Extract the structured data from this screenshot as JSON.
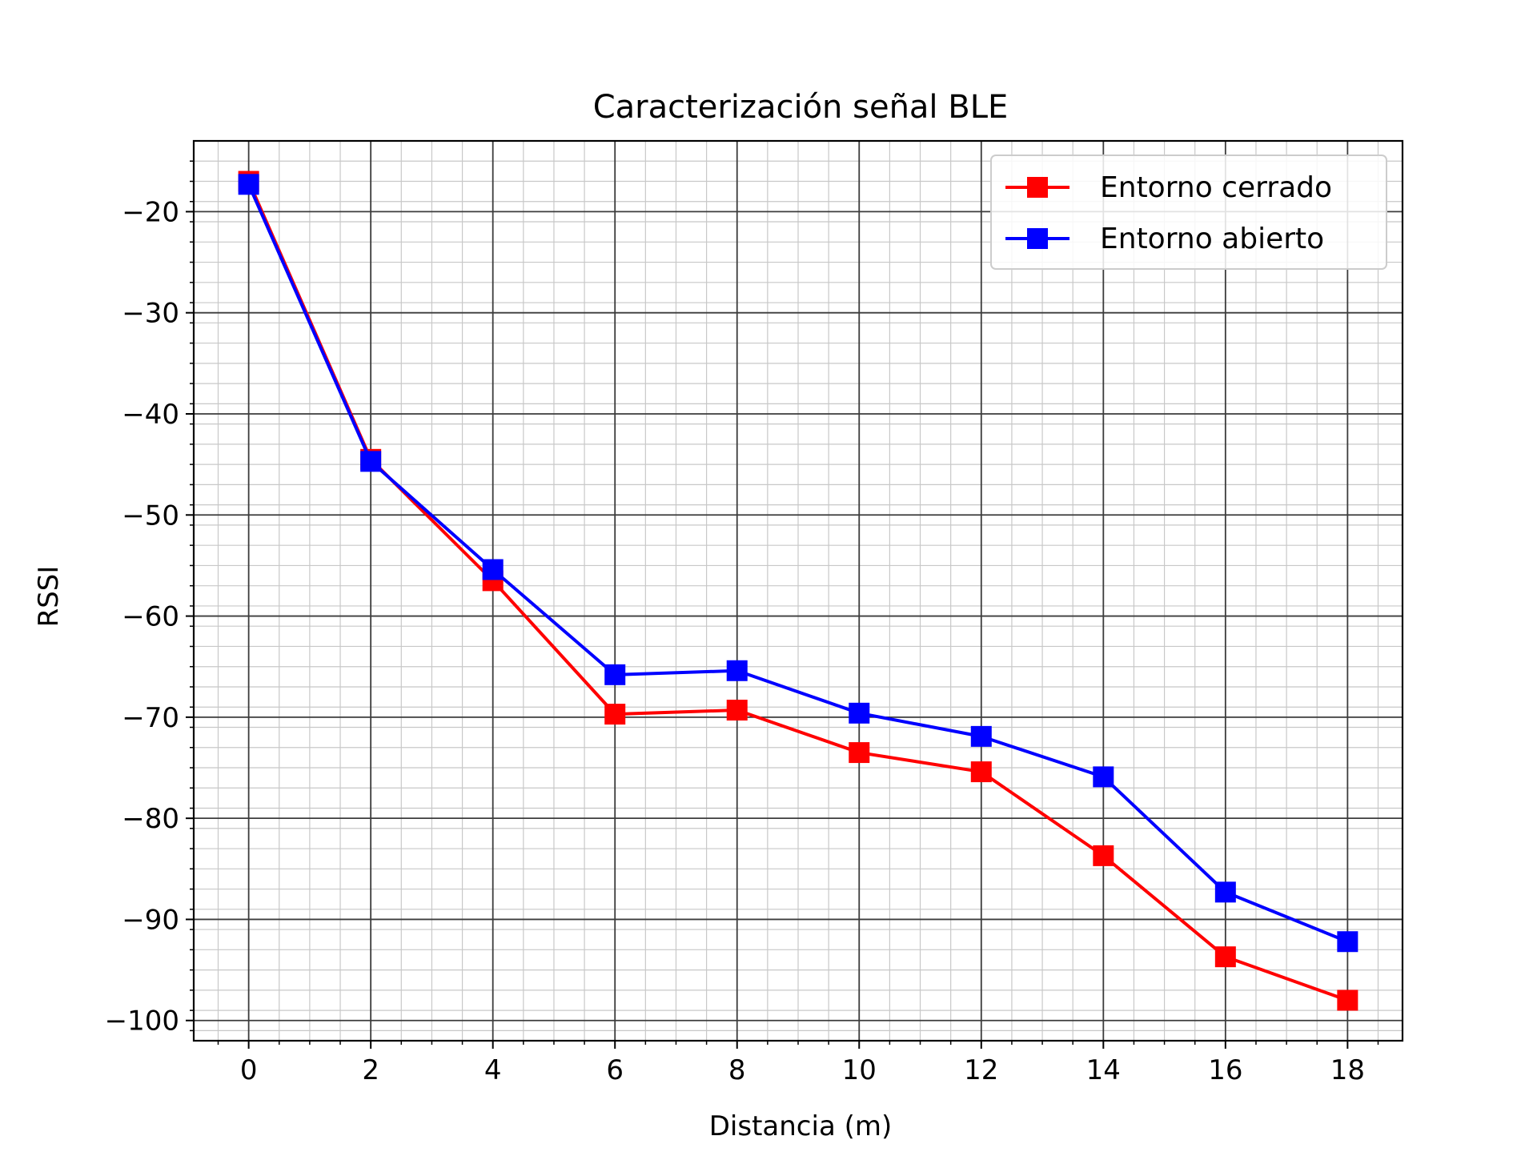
{
  "chart_data": {
    "type": "line",
    "title": "Caracterización señal BLE",
    "xlabel": "Distancia (m)",
    "ylabel": "RSSI",
    "xlim": [
      -0.9,
      18.9
    ],
    "ylim": [
      -102,
      -13
    ],
    "x_ticks": [
      0,
      2,
      4,
      6,
      8,
      10,
      12,
      14,
      16,
      18
    ],
    "y_ticks": [
      -20,
      -30,
      -40,
      -50,
      -60,
      -70,
      -80,
      -90,
      -100
    ],
    "x_tick_labels": [
      "0",
      "2",
      "4",
      "6",
      "8",
      "10",
      "12",
      "14",
      "16",
      "18"
    ],
    "y_tick_labels": [
      "−20",
      "−30",
      "−40",
      "−50",
      "−60",
      "−70",
      "−80",
      "−90",
      "−100"
    ],
    "grid": "on",
    "legend_position": "top-right",
    "x": [
      0,
      2,
      4,
      6,
      8,
      10,
      12,
      14,
      16,
      18
    ],
    "series": [
      {
        "name": "Entorno cerrado",
        "color": "#ff0000",
        "marker": "square",
        "values": [
          -17.0,
          -44.5,
          -56.5,
          -69.7,
          -69.3,
          -73.5,
          -75.4,
          -83.7,
          -93.7,
          -98.0
        ]
      },
      {
        "name": "Entorno abierto",
        "color": "#0000ff",
        "marker": "square",
        "values": [
          -17.3,
          -44.7,
          -55.4,
          -65.8,
          -65.4,
          -69.6,
          -71.9,
          -75.9,
          -87.3,
          -92.2
        ]
      }
    ]
  }
}
